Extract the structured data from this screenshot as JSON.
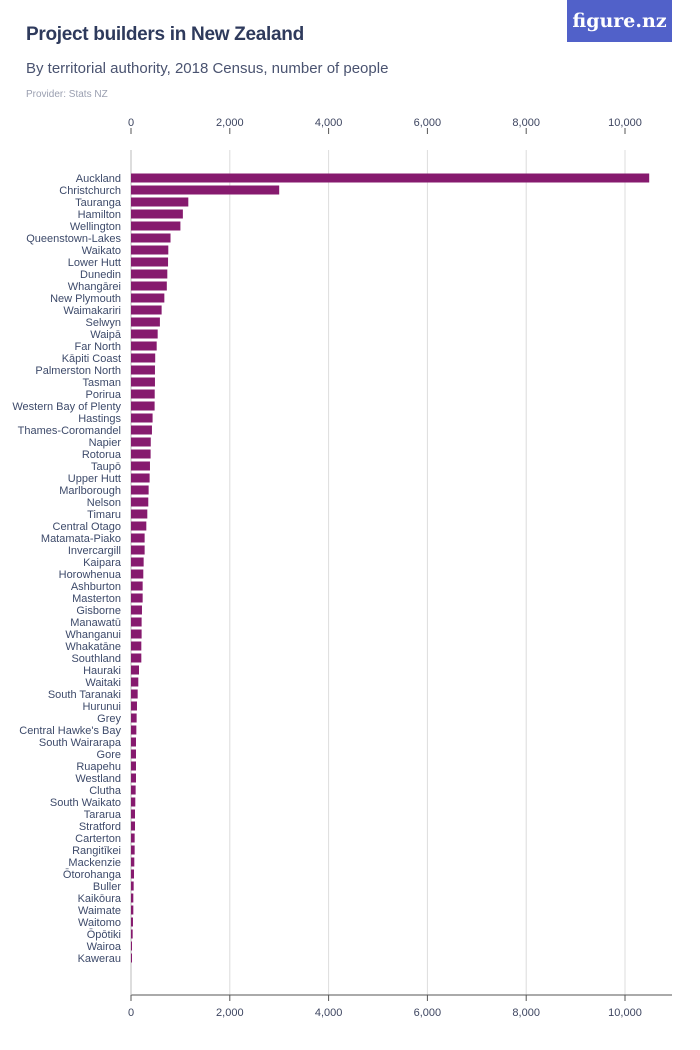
{
  "header": {
    "title": "Project builders in New Zealand",
    "subtitle": "By territorial authority, 2018 Census, number of people",
    "provider": "Provider: Stats NZ",
    "logo": "figure.nz"
  },
  "colors": {
    "bar": "#861a6e",
    "logo_bg": "#5161c9",
    "grid": "#dcdcdc"
  },
  "chart_data": {
    "type": "bar",
    "orientation": "horizontal",
    "title": "Project builders in New Zealand",
    "subtitle": "By territorial authority, 2018 Census, number of people",
    "xlim": [
      0,
      10500
    ],
    "xticks": [
      0,
      2000,
      4000,
      6000,
      8000,
      10000
    ],
    "xtick_labels": [
      "0",
      "2,000",
      "4,000",
      "6,000",
      "8,000",
      "10,000"
    ],
    "grid": true,
    "categories": [
      "Auckland",
      "Christchurch",
      "Tauranga",
      "Hamilton",
      "Wellington",
      "Queenstown-Lakes",
      "Waikato",
      "Lower Hutt",
      "Dunedin",
      "Whangārei",
      "New Plymouth",
      "Waimakariri",
      "Selwyn",
      "Waipā",
      "Far North",
      "Kāpiti Coast",
      "Palmerston North",
      "Tasman",
      "Porirua",
      "Western Bay of Plenty",
      "Hastings",
      "Thames-Coromandel",
      "Napier",
      "Rotorua",
      "Taupō",
      "Upper Hutt",
      "Marlborough",
      "Nelson",
      "Timaru",
      "Central Otago",
      "Matamata-Piako",
      "Invercargill",
      "Kaipara",
      "Horowhenua",
      "Ashburton",
      "Masterton",
      "Gisborne",
      "Manawatū",
      "Whanganui",
      "Whakatāne",
      "Southland",
      "Hauraki",
      "Waitaki",
      "South Taranaki",
      "Hurunui",
      "Grey",
      "Central Hawke's Bay",
      "South Wairarapa",
      "Gore",
      "Ruapehu",
      "Westland",
      "Clutha",
      "South Waikato",
      "Tararua",
      "Stratford",
      "Carterton",
      "Rangitīkei",
      "Mackenzie",
      "Ōtorohanga",
      "Buller",
      "Kaikōura",
      "Waimate",
      "Waitomo",
      "Ōpōtiki",
      "Wairoa",
      "Kawerau"
    ],
    "values": [
      10490,
      3000,
      1160,
      1050,
      1000,
      800,
      755,
      750,
      735,
      725,
      675,
      620,
      585,
      540,
      520,
      490,
      485,
      485,
      480,
      478,
      437,
      424,
      400,
      397,
      384,
      377,
      357,
      350,
      330,
      310,
      276,
      276,
      256,
      249,
      236,
      236,
      222,
      215,
      215,
      209,
      209,
      162,
      148,
      135,
      121,
      114,
      108,
      101,
      101,
      101,
      101,
      94,
      87,
      81,
      81,
      74,
      74,
      67,
      61,
      54,
      47,
      47,
      40,
      34,
      20,
      13
    ]
  }
}
